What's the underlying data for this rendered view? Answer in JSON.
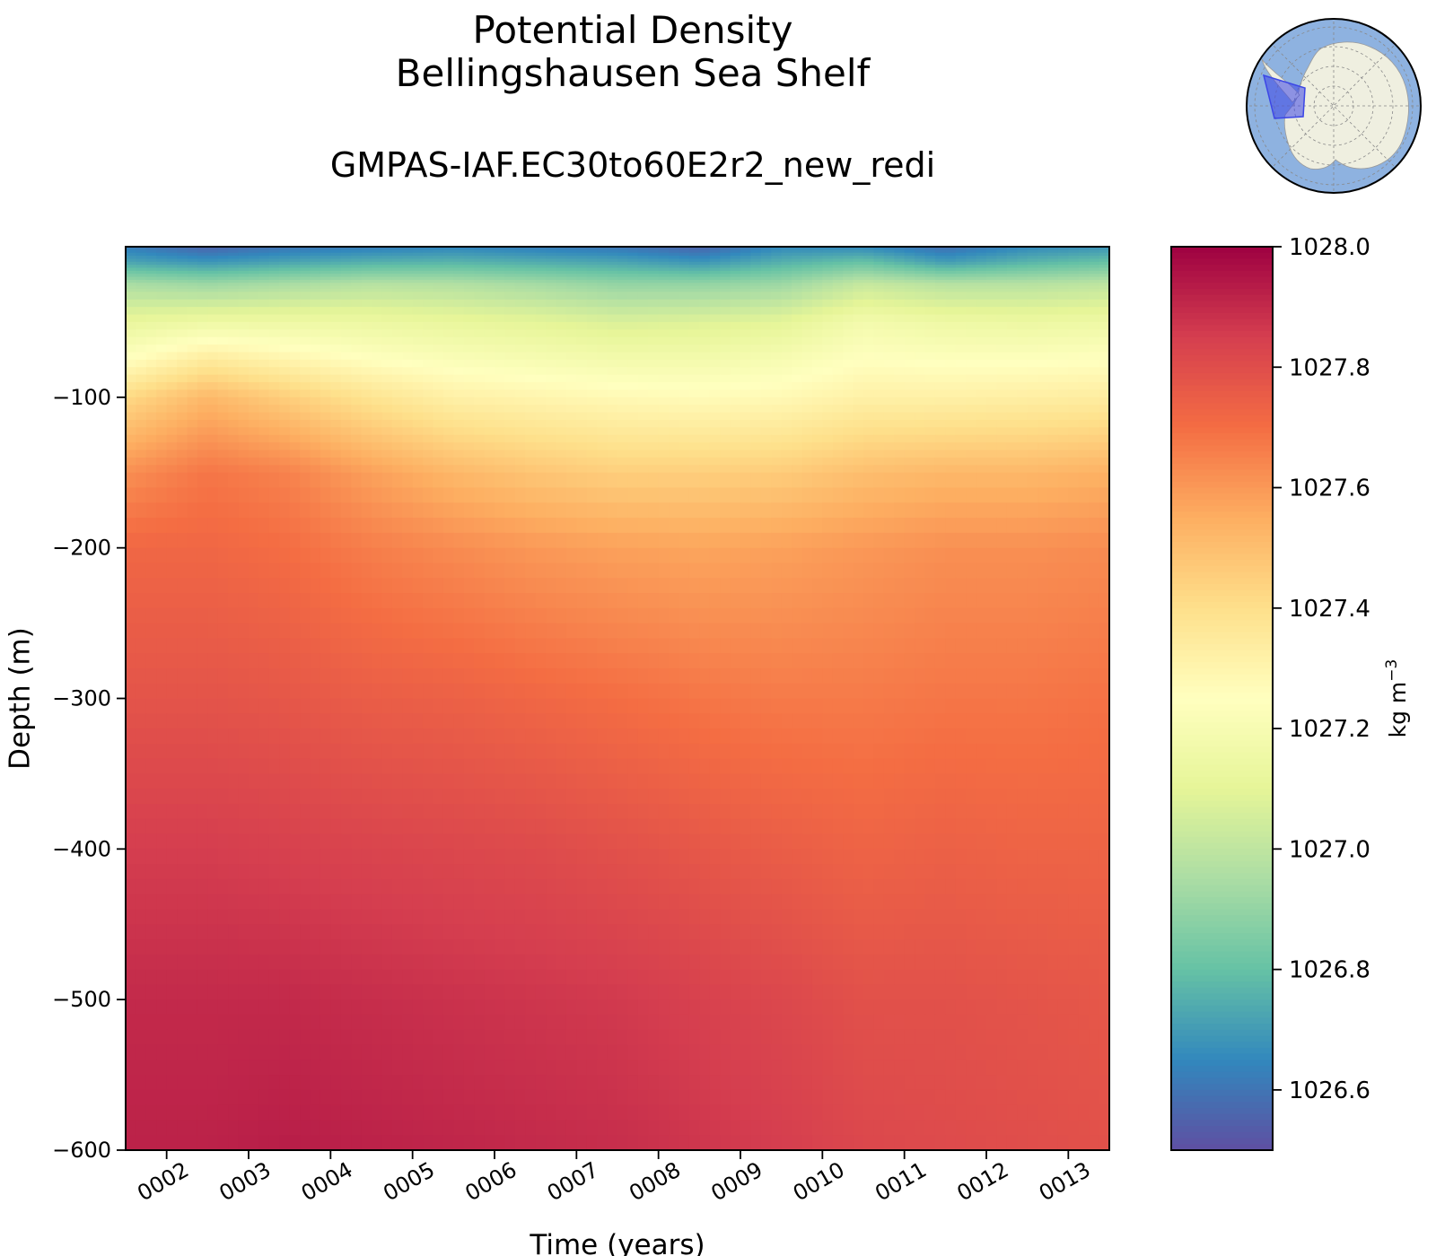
{
  "title": "Potential Density",
  "subtitle": "Bellingshausen Sea Shelf",
  "run_name": "GMPAS-IAF.EC30to60E2r2_new_redi",
  "chart_data": {
    "type": "heatmap",
    "title": "Potential Density\nBellingshausen Sea Shelf",
    "subtitle": "GMPAS-IAF.EC30to60E2r2_new_redi",
    "xlabel": "Time (years)",
    "ylabel": "Depth (m)",
    "x_ticks": [
      "0002",
      "0003",
      "0004",
      "0005",
      "0006",
      "0007",
      "0008",
      "0009",
      "0010",
      "0011",
      "0012",
      "0013"
    ],
    "x_range": [
      1.5,
      13.5
    ],
    "y_ticks": [
      -100,
      -200,
      -300,
      -400,
      -500,
      -600
    ],
    "y_tick_labels": [
      "−100",
      "−200",
      "−300",
      "−400",
      "−500",
      "−600"
    ],
    "ylim": [
      -600,
      0
    ],
    "colorbar": {
      "label": "kg m",
      "label_exponent": "−3",
      "min": 1026.5,
      "max": 1028.0,
      "ticks": [
        1026.6,
        1026.8,
        1027.0,
        1027.2,
        1027.4,
        1027.6,
        1027.8,
        1028.0
      ],
      "tick_labels": [
        "1026.6",
        "1026.8",
        "1027.0",
        "1027.2",
        "1027.4",
        "1027.6",
        "1027.8",
        "1028.0"
      ],
      "colormap": "Spectral_r"
    },
    "depth_levels": [
      0,
      -10,
      -25,
      -50,
      -75,
      -100,
      -150,
      -200,
      -300,
      -400,
      -500,
      -600
    ],
    "profiles": [
      {
        "time": 1.5,
        "values": [
          1026.62,
          1026.72,
          1026.95,
          1027.12,
          1027.25,
          1027.42,
          1027.62,
          1027.72,
          1027.78,
          1027.85,
          1027.9,
          1027.92
        ]
      },
      {
        "time": 2.5,
        "values": [
          1026.55,
          1026.68,
          1026.92,
          1027.15,
          1027.35,
          1027.52,
          1027.68,
          1027.72,
          1027.78,
          1027.85,
          1027.9,
          1027.92
        ]
      },
      {
        "time": 3.5,
        "values": [
          1026.6,
          1026.72,
          1026.95,
          1027.15,
          1027.3,
          1027.45,
          1027.65,
          1027.7,
          1027.77,
          1027.84,
          1027.9,
          1027.93
        ]
      },
      {
        "time": 4.5,
        "values": [
          1026.62,
          1026.75,
          1026.98,
          1027.14,
          1027.25,
          1027.38,
          1027.58,
          1027.66,
          1027.75,
          1027.83,
          1027.89,
          1027.92
        ]
      },
      {
        "time": 5.5,
        "values": [
          1026.64,
          1026.76,
          1026.97,
          1027.12,
          1027.22,
          1027.32,
          1027.52,
          1027.63,
          1027.74,
          1027.82,
          1027.88,
          1027.91
        ]
      },
      {
        "time": 6.5,
        "values": [
          1026.62,
          1026.74,
          1026.94,
          1027.1,
          1027.2,
          1027.3,
          1027.48,
          1027.6,
          1027.72,
          1027.81,
          1027.87,
          1027.9
        ]
      },
      {
        "time": 7.5,
        "values": [
          1026.6,
          1026.72,
          1026.9,
          1027.07,
          1027.18,
          1027.28,
          1027.45,
          1027.58,
          1027.7,
          1027.79,
          1027.86,
          1027.89
        ]
      },
      {
        "time": 8.5,
        "values": [
          1026.55,
          1026.68,
          1026.9,
          1027.08,
          1027.18,
          1027.27,
          1027.45,
          1027.57,
          1027.68,
          1027.77,
          1027.84,
          1027.87
        ]
      },
      {
        "time": 9.5,
        "values": [
          1026.65,
          1026.75,
          1026.92,
          1027.1,
          1027.2,
          1027.28,
          1027.46,
          1027.58,
          1027.67,
          1027.75,
          1027.82,
          1027.85
        ]
      },
      {
        "time": 10.5,
        "values": [
          1026.65,
          1026.8,
          1027.02,
          1027.18,
          1027.25,
          1027.32,
          1027.5,
          1027.6,
          1027.67,
          1027.73,
          1027.79,
          1027.82
        ]
      },
      {
        "time": 11.5,
        "values": [
          1026.58,
          1026.7,
          1026.98,
          1027.15,
          1027.24,
          1027.32,
          1027.52,
          1027.62,
          1027.68,
          1027.74,
          1027.79,
          1027.81
        ]
      },
      {
        "time": 12.5,
        "values": [
          1026.65,
          1026.76,
          1026.98,
          1027.14,
          1027.24,
          1027.33,
          1027.52,
          1027.62,
          1027.68,
          1027.73,
          1027.78,
          1027.8
        ]
      },
      {
        "time": 13.5,
        "values": [
          1026.68,
          1026.8,
          1027.0,
          1027.15,
          1027.25,
          1027.34,
          1027.54,
          1027.63,
          1027.69,
          1027.73,
          1027.77,
          1027.79
        ]
      }
    ],
    "grid": false,
    "legend": "colorbar right",
    "inset": "polar map of Antarctica with Bellingshausen Sea Shelf region highlighted"
  },
  "colors": {
    "ocean": "#8eb2e0",
    "land": "#efefe0",
    "region": "#3c46e6",
    "axis": "#000000"
  }
}
